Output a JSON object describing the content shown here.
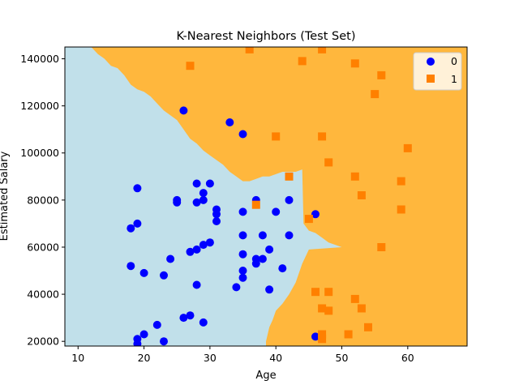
{
  "chart_data": {
    "type": "scatter",
    "title": "K-Nearest Neighbors (Test Set)",
    "xlabel": "Age",
    "ylabel": "Estimated Salary",
    "xlim": [
      8,
      69
    ],
    "ylim": [
      18000,
      145000
    ],
    "xticks": [
      10,
      20,
      30,
      40,
      50,
      60
    ],
    "yticks": [
      20000,
      40000,
      60000,
      80000,
      100000,
      120000,
      140000
    ],
    "xtick_labels": [
      "10",
      "20",
      "30",
      "40",
      "50",
      "60"
    ],
    "ytick_labels": [
      "20000",
      "40000",
      "60000",
      "80000",
      "100000",
      "120000",
      "140000"
    ],
    "legend_position": "top-right",
    "background_regions": [
      {
        "label": "0",
        "color": "#c1e0ea"
      },
      {
        "label": "1",
        "color": "#ffb73d"
      }
    ],
    "decision_boundary": [
      [
        8,
        145000
      ],
      [
        12,
        145000
      ],
      [
        13,
        142000
      ],
      [
        14,
        140000
      ],
      [
        15,
        137000
      ],
      [
        16,
        136000
      ],
      [
        17,
        133000
      ],
      [
        18,
        129000
      ],
      [
        19,
        127000
      ],
      [
        20,
        126000
      ],
      [
        21,
        124000
      ],
      [
        22,
        121000
      ],
      [
        23,
        118000
      ],
      [
        24,
        116000
      ],
      [
        25,
        114000
      ],
      [
        26,
        110000
      ],
      [
        27,
        106000
      ],
      [
        28,
        104000
      ],
      [
        29,
        101000
      ],
      [
        30,
        99000
      ],
      [
        31,
        97000
      ],
      [
        32,
        95000
      ],
      [
        33,
        92000
      ],
      [
        34,
        90000
      ],
      [
        35,
        88000
      ],
      [
        36,
        88000
      ],
      [
        37,
        89000
      ],
      [
        38,
        90000
      ],
      [
        39,
        90000
      ],
      [
        40,
        91000
      ],
      [
        41,
        92000
      ],
      [
        42,
        92000
      ],
      [
        43,
        92000
      ],
      [
        44,
        93000
      ],
      [
        44.2,
        70000
      ],
      [
        45,
        67000
      ],
      [
        46,
        66000
      ],
      [
        47,
        64000
      ],
      [
        48,
        62000
      ],
      [
        49,
        61000
      ],
      [
        50,
        60000
      ],
      [
        45,
        59000
      ],
      [
        44,
        53000
      ],
      [
        43,
        45000
      ],
      [
        42,
        40000
      ],
      [
        41,
        36000
      ],
      [
        40,
        33000
      ],
      [
        39.5,
        29000
      ],
      [
        39,
        26000
      ],
      [
        38.5,
        20000
      ],
      [
        38.5,
        18000
      ]
    ],
    "series": [
      {
        "name": "0",
        "color": "#0000ff",
        "marker": "circle",
        "points": [
          [
            19,
            85000
          ],
          [
            19,
            70000
          ],
          [
            18,
            68000
          ],
          [
            18,
            52000
          ],
          [
            20,
            49000
          ],
          [
            19,
            21000
          ],
          [
            19,
            19000
          ],
          [
            20,
            23000
          ],
          [
            22,
            27000
          ],
          [
            23,
            48000
          ],
          [
            23,
            20000
          ],
          [
            24,
            55000
          ],
          [
            25,
            80000
          ],
          [
            25,
            79000
          ],
          [
            26,
            118000
          ],
          [
            26,
            30000
          ],
          [
            27,
            58000
          ],
          [
            27,
            31000
          ],
          [
            28,
            87000
          ],
          [
            28,
            79000
          ],
          [
            28,
            59000
          ],
          [
            28,
            44000
          ],
          [
            29,
            83000
          ],
          [
            29,
            80000
          ],
          [
            29,
            61000
          ],
          [
            29,
            28000
          ],
          [
            30,
            87000
          ],
          [
            30,
            62000
          ],
          [
            31,
            76000
          ],
          [
            31,
            74000
          ],
          [
            31,
            71000
          ],
          [
            33,
            113000
          ],
          [
            34,
            43000
          ],
          [
            35,
            108000
          ],
          [
            35,
            75000
          ],
          [
            35,
            65000
          ],
          [
            35,
            57000
          ],
          [
            35,
            50000
          ],
          [
            35,
            47000
          ],
          [
            37,
            80000
          ],
          [
            37,
            55000
          ],
          [
            37,
            53000
          ],
          [
            38,
            65000
          ],
          [
            38,
            55000
          ],
          [
            39,
            59000
          ],
          [
            39,
            42000
          ],
          [
            40,
            75000
          ],
          [
            41,
            51000
          ],
          [
            42,
            80000
          ],
          [
            42,
            65000
          ],
          [
            46,
            74000
          ],
          [
            46,
            22000
          ]
        ]
      },
      {
        "name": "1",
        "color": "#ff8000",
        "marker": "square",
        "points": [
          [
            27,
            137000
          ],
          [
            36,
            144000
          ],
          [
            44,
            139000
          ],
          [
            47,
            144000
          ],
          [
            52,
            138000
          ],
          [
            56,
            133000
          ],
          [
            55,
            125000
          ],
          [
            40,
            107000
          ],
          [
            47,
            107000
          ],
          [
            60,
            102000
          ],
          [
            48,
            96000
          ],
          [
            42,
            90000
          ],
          [
            52,
            90000
          ],
          [
            59,
            88000
          ],
          [
            53,
            82000
          ],
          [
            37,
            78000
          ],
          [
            59,
            76000
          ],
          [
            45,
            72000
          ],
          [
            56,
            60000
          ],
          [
            46,
            41000
          ],
          [
            48,
            41000
          ],
          [
            52,
            38000
          ],
          [
            47,
            34000
          ],
          [
            48,
            33000
          ],
          [
            53,
            34000
          ],
          [
            54,
            26000
          ],
          [
            47,
            23000
          ],
          [
            47,
            21000
          ],
          [
            51,
            23000
          ]
        ]
      }
    ]
  }
}
